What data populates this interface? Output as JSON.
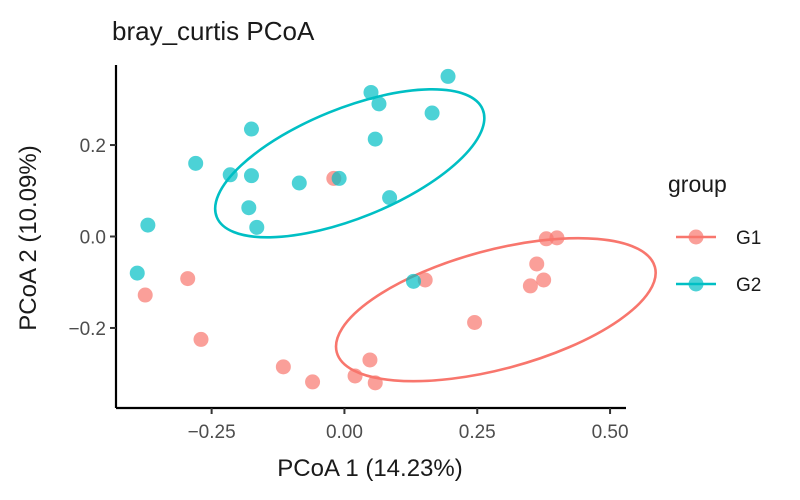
{
  "chart_data": {
    "type": "scatter",
    "title": "bray_curtis PCoA",
    "xlabel": "PCoA 1 (14.23%)",
    "ylabel": "PCoA 2 (10.09%)",
    "xlim": [
      -0.43,
      0.53
    ],
    "ylim": [
      -0.375,
      0.375
    ],
    "xticks": [
      {
        "value": -0.25,
        "label": "-0.25"
      },
      {
        "value": 0.0,
        "label": "0.00"
      },
      {
        "value": 0.25,
        "label": "0.25"
      },
      {
        "value": 0.5,
        "label": "0.50"
      }
    ],
    "yticks": [
      {
        "value": -0.2,
        "label": "-0.2"
      },
      {
        "value": 0.0,
        "label": "0.0"
      },
      {
        "value": 0.2,
        "label": "0.2"
      }
    ],
    "grid": false,
    "legend": {
      "title": "group",
      "position": "right"
    },
    "series": [
      {
        "name": "G1",
        "color": "#F8766D",
        "points": [
          {
            "x": -0.375,
            "y": -0.128
          },
          {
            "x": -0.295,
            "y": -0.092
          },
          {
            "x": -0.27,
            "y": -0.225
          },
          {
            "x": -0.115,
            "y": -0.285
          },
          {
            "x": -0.06,
            "y": -0.318
          },
          {
            "x": 0.02,
            "y": -0.305
          },
          {
            "x": 0.048,
            "y": -0.27
          },
          {
            "x": 0.058,
            "y": -0.32
          },
          {
            "x": -0.02,
            "y": 0.127
          },
          {
            "x": 0.152,
            "y": -0.095
          },
          {
            "x": 0.245,
            "y": -0.188
          },
          {
            "x": 0.35,
            "y": -0.108
          },
          {
            "x": 0.362,
            "y": -0.06
          },
          {
            "x": 0.375,
            "y": -0.095
          },
          {
            "x": 0.38,
            "y": -0.005
          },
          {
            "x": 0.4,
            "y": -0.003
          }
        ],
        "ellipse": {
          "cx": 0.285,
          "cy": -0.16,
          "rx": 0.31,
          "ry": 0.13,
          "angle": 15
        }
      },
      {
        "name": "G2",
        "color": "#00BFC4",
        "points": [
          {
            "x": -0.39,
            "y": -0.08
          },
          {
            "x": -0.37,
            "y": 0.025
          },
          {
            "x": -0.28,
            "y": 0.16
          },
          {
            "x": -0.215,
            "y": 0.135
          },
          {
            "x": -0.18,
            "y": 0.063
          },
          {
            "x": -0.175,
            "y": 0.133
          },
          {
            "x": -0.175,
            "y": 0.235
          },
          {
            "x": -0.165,
            "y": 0.02
          },
          {
            "x": -0.085,
            "y": 0.117
          },
          {
            "x": -0.01,
            "y": 0.127
          },
          {
            "x": 0.05,
            "y": 0.315
          },
          {
            "x": 0.058,
            "y": 0.213
          },
          {
            "x": 0.065,
            "y": 0.29
          },
          {
            "x": 0.085,
            "y": 0.085
          },
          {
            "x": 0.13,
            "y": -0.098
          },
          {
            "x": 0.165,
            "y": 0.27
          },
          {
            "x": 0.195,
            "y": 0.35
          }
        ],
        "ellipse": {
          "cx": 0.01,
          "cy": 0.16,
          "rx": 0.27,
          "ry": 0.12,
          "angle": 22
        }
      }
    ]
  }
}
